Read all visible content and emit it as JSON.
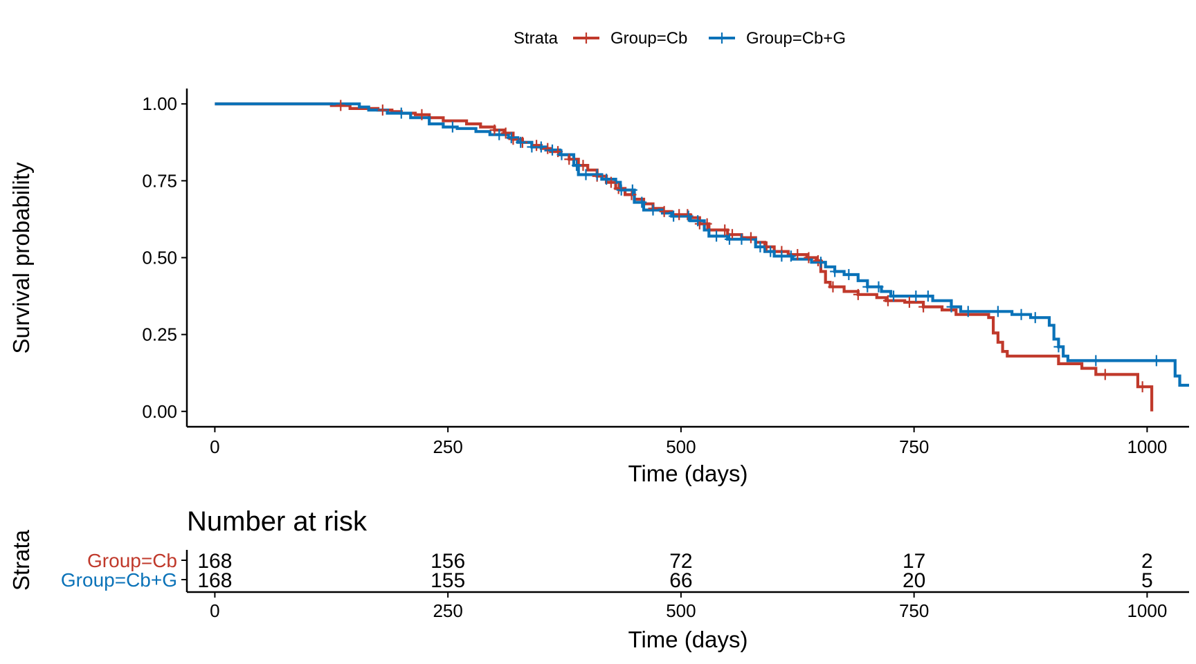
{
  "chart_data": {
    "type": "kaplan-meier",
    "legend": {
      "title": "Strata",
      "entries": [
        {
          "label": "Group=Cb",
          "color": "#c0392b"
        },
        {
          "label": "Group=Cb+G",
          "color": "#0a72b8"
        }
      ],
      "position": "top-center"
    },
    "main_plot": {
      "xlabel": "Time (days)",
      "ylabel": "Survival probability",
      "xlim": [
        -30,
        1045
      ],
      "ylim": [
        -0.05,
        1.05
      ],
      "xticks": [
        0,
        250,
        500,
        750,
        1000
      ],
      "xtick_labels": [
        "0",
        "250",
        "500",
        "750",
        "1000"
      ],
      "yticks": [
        0,
        0.25,
        0.5,
        0.75,
        1.0
      ],
      "ytick_labels": [
        "0.00",
        "0.25",
        "0.50",
        "0.75",
        "1.00"
      ]
    },
    "series": [
      {
        "name": "Group=Cb",
        "color": "#c0392b",
        "steps": [
          [
            0,
            1.0
          ],
          [
            125,
            0.995
          ],
          [
            145,
            0.985
          ],
          [
            175,
            0.98
          ],
          [
            190,
            0.975
          ],
          [
            200,
            0.97
          ],
          [
            215,
            0.965
          ],
          [
            230,
            0.955
          ],
          [
            245,
            0.945
          ],
          [
            270,
            0.935
          ],
          [
            285,
            0.925
          ],
          [
            300,
            0.915
          ],
          [
            310,
            0.905
          ],
          [
            320,
            0.885
          ],
          [
            330,
            0.875
          ],
          [
            340,
            0.865
          ],
          [
            350,
            0.855
          ],
          [
            360,
            0.845
          ],
          [
            370,
            0.835
          ],
          [
            380,
            0.82
          ],
          [
            390,
            0.8
          ],
          [
            400,
            0.785
          ],
          [
            410,
            0.765
          ],
          [
            420,
            0.745
          ],
          [
            430,
            0.725
          ],
          [
            440,
            0.705
          ],
          [
            450,
            0.69
          ],
          [
            460,
            0.675
          ],
          [
            470,
            0.66
          ],
          [
            480,
            0.65
          ],
          [
            490,
            0.64
          ],
          [
            510,
            0.63
          ],
          [
            520,
            0.61
          ],
          [
            530,
            0.59
          ],
          [
            550,
            0.575
          ],
          [
            565,
            0.565
          ],
          [
            580,
            0.55
          ],
          [
            590,
            0.535
          ],
          [
            600,
            0.52
          ],
          [
            615,
            0.51
          ],
          [
            635,
            0.5
          ],
          [
            645,
            0.49
          ],
          [
            650,
            0.455
          ],
          [
            655,
            0.42
          ],
          [
            660,
            0.405
          ],
          [
            675,
            0.39
          ],
          [
            690,
            0.38
          ],
          [
            710,
            0.37
          ],
          [
            720,
            0.36
          ],
          [
            740,
            0.355
          ],
          [
            760,
            0.34
          ],
          [
            780,
            0.33
          ],
          [
            795,
            0.315
          ],
          [
            830,
            0.305
          ],
          [
            835,
            0.255
          ],
          [
            840,
            0.225
          ],
          [
            845,
            0.195
          ],
          [
            850,
            0.18
          ],
          [
            905,
            0.155
          ],
          [
            930,
            0.14
          ],
          [
            945,
            0.12
          ],
          [
            990,
            0.08
          ],
          [
            1005,
            0.0
          ]
        ],
        "end": 1005,
        "censor_times": [
          135,
          180,
          222,
          300,
          312,
          320,
          330,
          345,
          357,
          368,
          380,
          395,
          410,
          425,
          433,
          447,
          470,
          482,
          498,
          507,
          520,
          528,
          547,
          555,
          575,
          592,
          608,
          625,
          637,
          647,
          663,
          690,
          722,
          745,
          760,
          955,
          995
        ]
      },
      {
        "name": "Group=Cb+G",
        "color": "#0a72b8",
        "steps": [
          [
            0,
            1.0
          ],
          [
            155,
            0.99
          ],
          [
            165,
            0.98
          ],
          [
            185,
            0.97
          ],
          [
            210,
            0.955
          ],
          [
            230,
            0.935
          ],
          [
            245,
            0.925
          ],
          [
            260,
            0.92
          ],
          [
            280,
            0.91
          ],
          [
            295,
            0.9
          ],
          [
            315,
            0.89
          ],
          [
            325,
            0.875
          ],
          [
            340,
            0.86
          ],
          [
            355,
            0.85
          ],
          [
            370,
            0.835
          ],
          [
            385,
            0.8
          ],
          [
            390,
            0.77
          ],
          [
            415,
            0.755
          ],
          [
            430,
            0.745
          ],
          [
            435,
            0.72
          ],
          [
            450,
            0.68
          ],
          [
            460,
            0.655
          ],
          [
            480,
            0.645
          ],
          [
            490,
            0.635
          ],
          [
            510,
            0.62
          ],
          [
            525,
            0.59
          ],
          [
            530,
            0.57
          ],
          [
            550,
            0.56
          ],
          [
            580,
            0.535
          ],
          [
            590,
            0.52
          ],
          [
            600,
            0.505
          ],
          [
            620,
            0.495
          ],
          [
            640,
            0.485
          ],
          [
            655,
            0.47
          ],
          [
            665,
            0.455
          ],
          [
            675,
            0.445
          ],
          [
            690,
            0.425
          ],
          [
            700,
            0.405
          ],
          [
            715,
            0.39
          ],
          [
            725,
            0.375
          ],
          [
            770,
            0.36
          ],
          [
            790,
            0.34
          ],
          [
            800,
            0.325
          ],
          [
            855,
            0.315
          ],
          [
            875,
            0.305
          ],
          [
            895,
            0.28
          ],
          [
            900,
            0.235
          ],
          [
            905,
            0.21
          ],
          [
            910,
            0.18
          ],
          [
            915,
            0.165
          ],
          [
            1030,
            0.115
          ],
          [
            1035,
            0.085
          ]
        ],
        "end": 1045,
        "censor_times": [
          200,
          255,
          305,
          318,
          328,
          340,
          350,
          362,
          372,
          388,
          398,
          410,
          420,
          436,
          448,
          458,
          470,
          492,
          508,
          518,
          538,
          552,
          565,
          585,
          596,
          608,
          618,
          650,
          665,
          680,
          700,
          712,
          728,
          752,
          765,
          790,
          808,
          840,
          865,
          880,
          905,
          945,
          1010
        ]
      }
    ],
    "risk_table": {
      "title": "Number at risk",
      "ylabel": "Strata",
      "xlabel": "Time (days)",
      "xticks": [
        0,
        250,
        500,
        750,
        1000
      ],
      "xtick_labels": [
        "0",
        "250",
        "500",
        "750",
        "1000"
      ],
      "rows": [
        {
          "label": "Group=Cb",
          "color": "#c0392b",
          "values": [
            "168",
            "156",
            "72",
            "17",
            "2"
          ]
        },
        {
          "label": "Group=Cb+G",
          "color": "#0a72b8",
          "values": [
            "168",
            "155",
            "66",
            "20",
            "5"
          ]
        }
      ]
    }
  }
}
